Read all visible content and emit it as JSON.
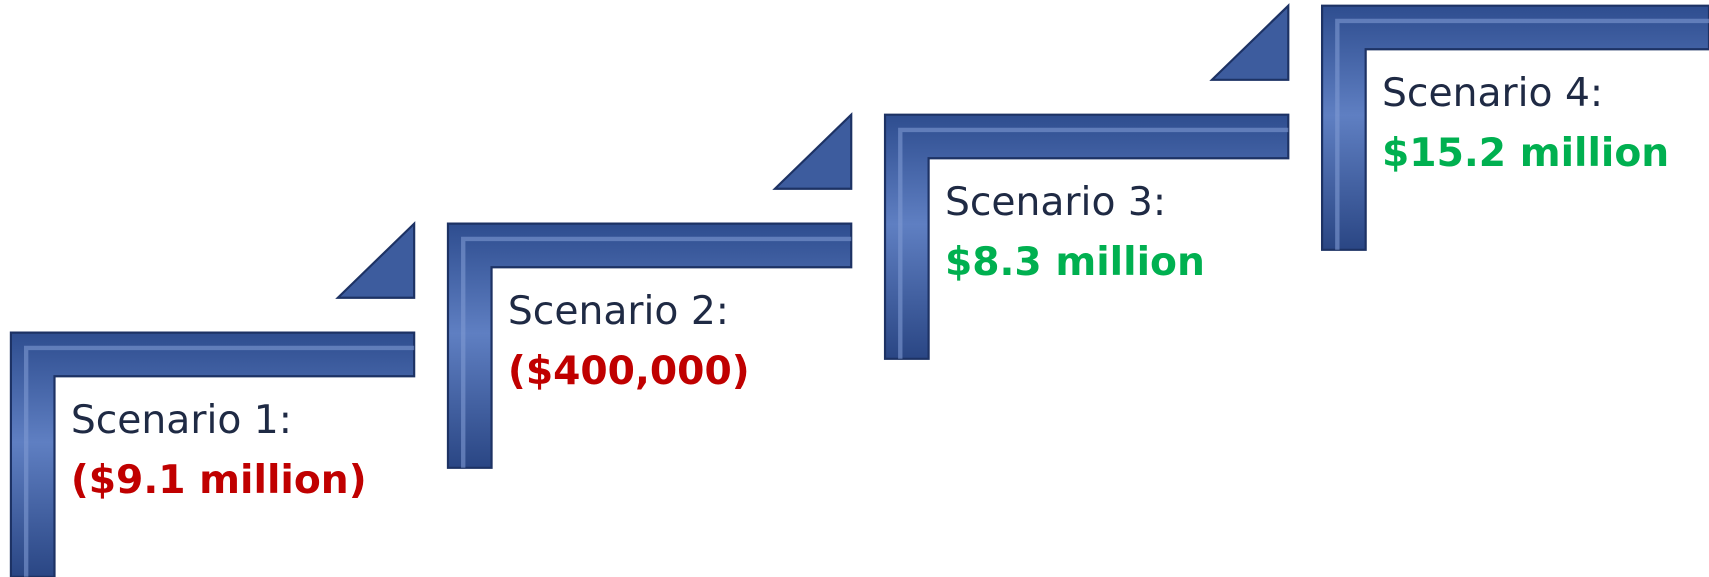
{
  "steps": [
    {
      "label": "Scenario 1:",
      "value": "($9.1 million)",
      "color": "#c00000"
    },
    {
      "label": "Scenario 2:",
      "value": "($400,000)",
      "color": "#c00000"
    },
    {
      "label": "Scenario 3:",
      "value": "$8.3 million",
      "color": "#00b050"
    },
    {
      "label": "Scenario 4:",
      "value": "$15.2 million",
      "color": "#00b050"
    }
  ]
}
